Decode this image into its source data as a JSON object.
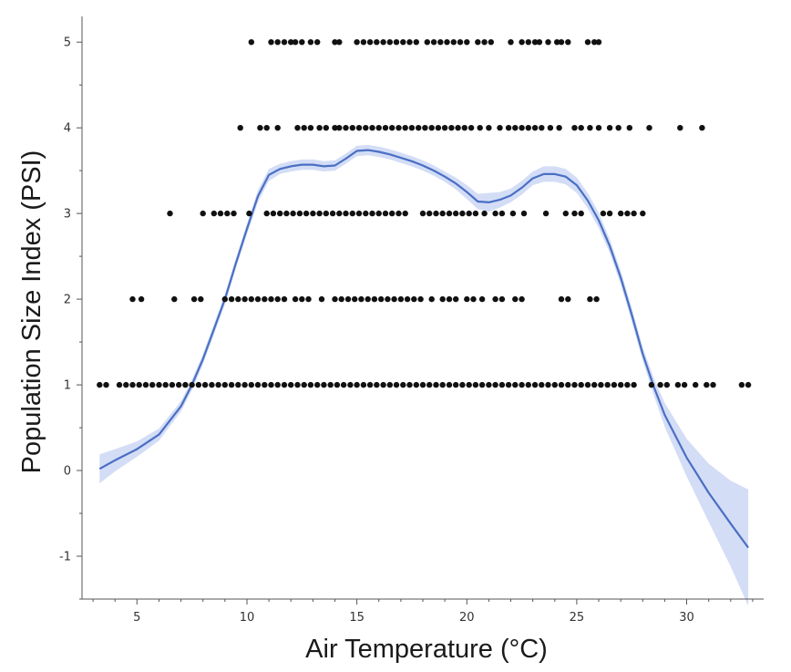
{
  "chart_data": {
    "type": "scatter",
    "title": "",
    "xlabel": "Air Temperature (°C)",
    "ylabel": "Population Size Index (PSI)",
    "xlim": [
      2.5,
      33.5
    ],
    "ylim": [
      -1.5,
      5.3
    ],
    "xticks": [
      5,
      10,
      15,
      20,
      25,
      30
    ],
    "yticks": [
      -1,
      0,
      1,
      2,
      3,
      4,
      5
    ],
    "xtick_labels": [
      "5",
      "10",
      "15",
      "20",
      "25",
      "30"
    ],
    "ytick_labels": [
      "-1",
      "0",
      "1",
      "2",
      "3",
      "4",
      "5"
    ],
    "grid": false,
    "legend": "none",
    "colors": {
      "points": "#111111",
      "curve": "#4a6fc4",
      "band": "#d3ddf6",
      "axis": "#555555"
    },
    "series": [
      {
        "kind": "points",
        "points_by_y": {
          "5": [
            10.2,
            11.1,
            11.4,
            11.7,
            12.0,
            12.2,
            12.5,
            12.9,
            13.2,
            14.0,
            14.2,
            15.0,
            15.3,
            15.6,
            15.9,
            16.2,
            16.5,
            16.8,
            17.1,
            17.4,
            17.7,
            18.2,
            18.5,
            18.8,
            19.1,
            19.4,
            19.7,
            20.0,
            20.5,
            20.8,
            21.1,
            22.0,
            22.5,
            22.8,
            23.1,
            23.3,
            23.7,
            24.1,
            24.3,
            24.6,
            25.5,
            25.8,
            26.0
          ],
          "4": [
            9.7,
            10.6,
            10.9,
            11.4,
            12.3,
            12.6,
            12.9,
            13.3,
            13.6,
            14.0,
            14.2,
            14.5,
            14.8,
            15.1,
            15.4,
            15.7,
            16.0,
            16.3,
            16.6,
            16.9,
            17.2,
            17.5,
            17.8,
            18.1,
            18.4,
            18.7,
            19.0,
            19.3,
            19.6,
            19.9,
            20.2,
            20.6,
            21.0,
            21.5,
            21.9,
            22.2,
            22.5,
            22.8,
            23.1,
            23.4,
            23.8,
            24.2,
            24.9,
            25.2,
            25.6,
            26.0,
            26.5,
            26.9,
            27.4,
            28.3,
            29.7,
            30.7
          ],
          "3": [
            6.5,
            8.0,
            8.5,
            8.8,
            9.1,
            9.4,
            10.1,
            10.9,
            11.2,
            11.5,
            11.8,
            12.1,
            12.4,
            12.7,
            13.0,
            13.3,
            13.6,
            13.9,
            14.2,
            14.5,
            14.8,
            15.1,
            15.4,
            15.7,
            16.0,
            16.3,
            16.6,
            16.9,
            17.2,
            18.0,
            18.3,
            18.6,
            18.9,
            19.2,
            19.5,
            19.8,
            20.1,
            20.4,
            20.8,
            21.3,
            21.6,
            22.1,
            22.6,
            23.6,
            24.5,
            24.9,
            25.2,
            26.2,
            26.5,
            27.0,
            27.3,
            27.6,
            28.0
          ],
          "2": [
            4.8,
            5.2,
            6.7,
            7.6,
            7.9,
            9.0,
            9.3,
            9.6,
            9.9,
            10.2,
            10.5,
            10.8,
            11.1,
            11.4,
            11.7,
            12.2,
            12.5,
            12.8,
            13.4,
            14.0,
            14.3,
            14.6,
            14.9,
            15.2,
            15.5,
            15.8,
            16.1,
            16.4,
            16.7,
            17.0,
            17.3,
            17.6,
            17.9,
            18.4,
            18.9,
            19.2,
            19.5,
            20.0,
            20.3,
            20.7,
            21.3,
            21.6,
            22.2,
            22.5,
            24.3,
            24.6,
            25.6,
            25.9
          ],
          "1": [
            3.3,
            3.6,
            4.2,
            4.5,
            4.8,
            5.1,
            5.4,
            5.7,
            6.0,
            6.3,
            6.6,
            6.9,
            7.2,
            7.5,
            7.8,
            8.1,
            8.4,
            8.7,
            9.0,
            9.3,
            9.6,
            9.9,
            10.2,
            10.5,
            10.8,
            11.1,
            11.4,
            11.7,
            12.0,
            12.3,
            12.6,
            12.9,
            13.2,
            13.5,
            13.8,
            14.1,
            14.4,
            14.7,
            15.0,
            15.3,
            15.6,
            15.9,
            16.2,
            16.5,
            16.8,
            17.1,
            17.4,
            17.7,
            18.0,
            18.3,
            18.6,
            18.9,
            19.2,
            19.5,
            19.8,
            20.1,
            20.4,
            20.7,
            21.0,
            21.3,
            21.6,
            21.9,
            22.2,
            22.5,
            22.8,
            23.1,
            23.4,
            23.7,
            24.0,
            24.3,
            24.6,
            24.9,
            25.2,
            25.5,
            25.8,
            26.1,
            26.4,
            26.7,
            27.0,
            27.3,
            27.6,
            28.4,
            28.8,
            29.1,
            29.6,
            29.9,
            30.4,
            30.9,
            31.2,
            32.5,
            32.8
          ]
        }
      },
      {
        "kind": "smoother",
        "x": [
          3.3,
          4.0,
          5.0,
          6.0,
          7.0,
          7.5,
          8.0,
          8.5,
          9.0,
          9.5,
          10.0,
          10.5,
          11.0,
          11.5,
          12.0,
          12.5,
          13.0,
          13.5,
          14.0,
          14.5,
          15.0,
          15.5,
          16.0,
          16.5,
          17.0,
          17.5,
          18.0,
          18.5,
          19.0,
          19.5,
          20.0,
          20.5,
          21.0,
          21.5,
          22.0,
          22.5,
          23.0,
          23.5,
          24.0,
          24.5,
          25.0,
          25.5,
          26.0,
          26.5,
          27.0,
          27.5,
          28.0,
          28.5,
          29.0,
          30.0,
          31.0,
          32.0,
          32.8
        ],
        "y": [
          0.02,
          0.12,
          0.25,
          0.42,
          0.75,
          1.0,
          1.3,
          1.65,
          2.0,
          2.42,
          2.82,
          3.2,
          3.45,
          3.52,
          3.55,
          3.57,
          3.57,
          3.55,
          3.56,
          3.64,
          3.73,
          3.74,
          3.72,
          3.69,
          3.65,
          3.61,
          3.56,
          3.5,
          3.43,
          3.35,
          3.25,
          3.14,
          3.13,
          3.16,
          3.21,
          3.3,
          3.41,
          3.46,
          3.46,
          3.43,
          3.33,
          3.15,
          2.92,
          2.62,
          2.25,
          1.82,
          1.36,
          0.98,
          0.65,
          0.15,
          -0.26,
          -0.62,
          -0.9
        ],
        "band_halfwidth": [
          0.17,
          0.13,
          0.09,
          0.07,
          0.06,
          0.06,
          0.06,
          0.06,
          0.06,
          0.06,
          0.06,
          0.07,
          0.07,
          0.06,
          0.06,
          0.06,
          0.06,
          0.06,
          0.06,
          0.06,
          0.06,
          0.06,
          0.06,
          0.06,
          0.06,
          0.06,
          0.06,
          0.06,
          0.06,
          0.07,
          0.08,
          0.09,
          0.11,
          0.09,
          0.08,
          0.08,
          0.08,
          0.09,
          0.09,
          0.09,
          0.09,
          0.09,
          0.09,
          0.08,
          0.08,
          0.08,
          0.08,
          0.1,
          0.14,
          0.22,
          0.34,
          0.5,
          0.68
        ]
      }
    ]
  }
}
